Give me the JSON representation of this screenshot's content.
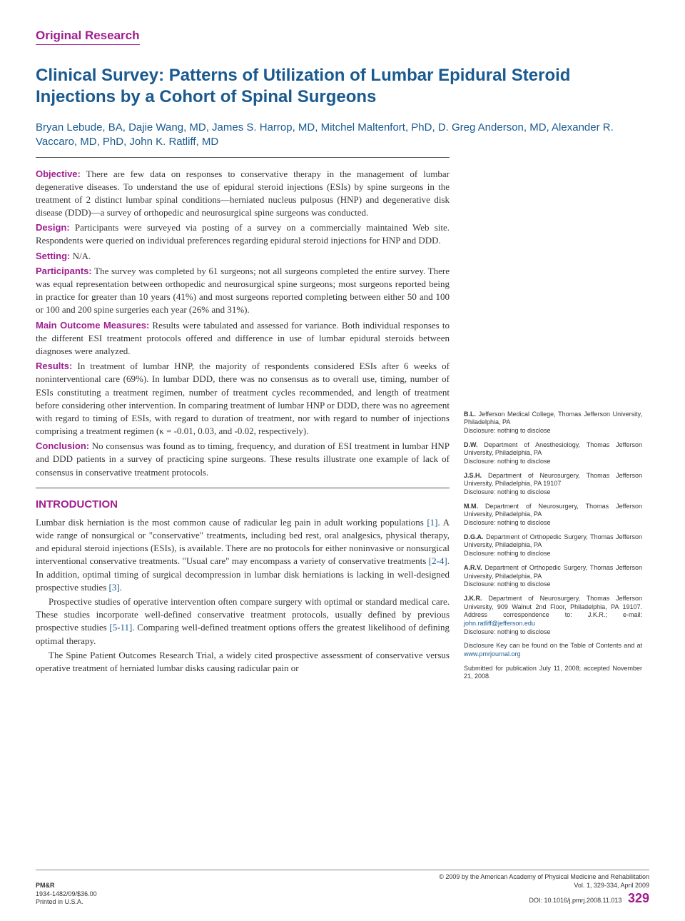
{
  "category": "Original Research",
  "title": "Clinical Survey: Patterns of Utilization of Lumbar Epidural Steroid Injections by a Cohort of Spinal Surgeons",
  "authors": "Bryan Lebude, BA, Dajie Wang, MD, James S. Harrop, MD, Mitchel Maltenfort, PhD, D. Greg Anderson, MD, Alexander R. Vaccaro, MD, PhD, John K. Ratliff, MD",
  "abstract": {
    "objective_label": "Objective:",
    "objective": " There are few data on responses to conservative therapy in the management of lumbar degenerative diseases. To understand the use of epidural steroid injections (ESIs) by spine surgeons in the treatment of 2 distinct lumbar spinal conditions—herniated nucleus pulposus (HNP) and degenerative disk disease (DDD)—a survey of orthopedic and neurosurgical spine surgeons was conducted.",
    "design_label": "Design:",
    "design": " Participants were surveyed via posting of a survey on a commercially maintained Web site. Respondents were queried on individual preferences regarding epidural steroid injections for HNP and DDD.",
    "setting_label": "Setting:",
    "setting": " N/A.",
    "participants_label": "Participants:",
    "participants": " The survey was completed by 61 surgeons; not all surgeons completed the entire survey. There was equal representation between orthopedic and neurosurgical spine surgeons; most surgeons reported being in practice for greater than 10 years (41%) and most surgeons reported completing between either 50 and 100 or 100 and 200 spine surgeries each year (26% and 31%).",
    "outcome_label": "Main Outcome Measures:",
    "outcome": " Results were tabulated and assessed for variance. Both individual responses to the different ESI treatment protocols offered and difference in use of lumbar epidural steroids between diagnoses were analyzed.",
    "results_label": "Results:",
    "results": " In treatment of lumbar HNP, the majority of respondents considered ESIs after 6 weeks of noninterventional care (69%). In lumbar DDD, there was no consensus as to overall use, timing, number of ESIs constituting a treatment regimen, number of treatment cycles recommended, and length of treatment before considering other intervention. In comparing treatment of lumbar HNP or DDD, there was no agreement with regard to timing of ESIs, with regard to duration of treatment, nor with regard to number of injections comprising a treatment regimen (κ = -0.01, 0.03, and -0.02, respectively).",
    "conclusion_label": "Conclusion:",
    "conclusion": " No consensus was found as to timing, frequency, and duration of ESI treatment in lumbar HNP and DDD patients in a survey of practicing spine surgeons. These results illustrate one example of lack of consensus in conservative treatment protocols."
  },
  "intro_heading": "INTRODUCTION",
  "intro": {
    "p1a": "Lumbar disk herniation is the most common cause of radicular leg pain in adult working populations ",
    "p1_ref1": "[1]",
    "p1b": ". A wide range of nonsurgical or \"conservative\" treatments, including bed rest, oral analgesics, physical therapy, and epidural steroid injections (ESIs), is available. There are no protocols for either noninvasive or nonsurgical interventional conservative treatments. \"Usual care\" may encompass a variety of conservative treatments ",
    "p1_ref2": "[2-4]",
    "p1c": ". In addition, optimal timing of surgical decompression in lumbar disk herniations is lacking in well-designed prospective studies ",
    "p1_ref3": "[3]",
    "p1d": ".",
    "p2a": "Prospective studies of operative intervention often compare surgery with optimal or standard medical care. These studies incorporate well-defined conservative treatment protocols, usually defined by previous prospective studies ",
    "p2_ref1": "[5-11]",
    "p2b": ". Comparing well-defined treatment options offers the greatest likelihood of defining optimal therapy.",
    "p3": "The Spine Patient Outcomes Research Trial, a widely cited prospective assessment of conservative versus operative treatment of herniated lumbar disks causing radicular pain or"
  },
  "affiliations": [
    {
      "initials": "B.L.",
      "text": " Jefferson Medical College, Thomas Jefferson University, Philadelphia, PA",
      "disclosure": "Disclosure: nothing to disclose"
    },
    {
      "initials": "D.W.",
      "text": " Department of Anesthesiology, Thomas Jefferson University, Philadelphia, PA",
      "disclosure": "Disclosure: nothing to disclose"
    },
    {
      "initials": "J.S.H.",
      "text": " Department of Neurosurgery, Thomas Jefferson University, Philadelphia, PA 19107",
      "disclosure": "Disclosure: nothing to disclose"
    },
    {
      "initials": "M.M.",
      "text": " Department of Neurosurgery, Thomas Jefferson University, Philadelphia, PA",
      "disclosure": "Disclosure: nothing to disclose"
    },
    {
      "initials": "D.G.A.",
      "text": " Department of Orthopedic Surgery, Thomas Jefferson University, Philadelphia, PA",
      "disclosure": "Disclosure: nothing to disclose"
    },
    {
      "initials": "A.R.V.",
      "text": " Department of Orthopedic Surgery, Thomas Jefferson University, Philadelphia, PA",
      "disclosure": "Disclosure: nothing to disclose"
    },
    {
      "initials": "J.K.R.",
      "text": " Department of Neurosurgery, Thomas Jefferson University, 909 Walnut 2nd Floor, Philadelphia, PA 19107. Address correspondence to: J.K.R.; e-mail: ",
      "email": "john.ratliff@jefferson.edu",
      "disclosure": "Disclosure: nothing to disclose"
    }
  ],
  "disclosure_key": "Disclosure Key can be found on the Table of Contents and at ",
  "disclosure_url": "www.pmrjournal.org",
  "submitted": "Submitted for publication July 11, 2008; accepted November 21, 2008.",
  "footer": {
    "journal": "PM&R",
    "issn": "1934-1482/09/$36.00",
    "printed": "Printed in U.S.A.",
    "copyright": "© 2009 by the American Academy of Physical Medicine and Rehabilitation",
    "vol": "Vol. 1, 329-334, April 2009",
    "doi": "DOI: 10.1016/j.pmrj.2008.11.013",
    "page": "329"
  },
  "colors": {
    "accent_purple": "#a01d8f",
    "accent_blue": "#1a5a8f",
    "text": "#333333",
    "background": "#ffffff"
  }
}
